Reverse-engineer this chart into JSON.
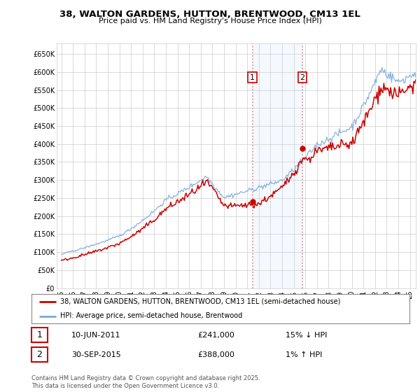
{
  "title": "38, WALTON GARDENS, HUTTON, BRENTWOOD, CM13 1EL",
  "subtitle": "Price paid vs. HM Land Registry's House Price Index (HPI)",
  "ylabel_ticks": [
    "£0",
    "£50K",
    "£100K",
    "£150K",
    "£200K",
    "£250K",
    "£300K",
    "£350K",
    "£400K",
    "£450K",
    "£500K",
    "£550K",
    "£600K",
    "£650K"
  ],
  "ytick_values": [
    0,
    50000,
    100000,
    150000,
    200000,
    250000,
    300000,
    350000,
    400000,
    450000,
    500000,
    550000,
    600000,
    650000
  ],
  "ylim": [
    0,
    680000
  ],
  "xlim_start": 1994.6,
  "xlim_end": 2025.5,
  "sale1_x": 2011.44,
  "sale1_y": 241000,
  "sale2_x": 2015.75,
  "sale2_y": 388000,
  "legend_line1": "38, WALTON GARDENS, HUTTON, BRENTWOOD, CM13 1EL (semi-detached house)",
  "legend_line2": "HPI: Average price, semi-detached house, Brentwood",
  "note1_date": "10-JUN-2011",
  "note1_price": "£241,000",
  "note1_hpi": "15% ↓ HPI",
  "note2_date": "30-SEP-2015",
  "note2_price": "£388,000",
  "note2_hpi": "1% ↑ HPI",
  "footer": "Contains HM Land Registry data © Crown copyright and database right 2025.\nThis data is licensed under the Open Government Licence v3.0.",
  "line_color_red": "#cc0000",
  "line_color_blue": "#7aaadd",
  "grid_color": "#cccccc",
  "vline_color": "#dd8888",
  "highlight_color": "#ddeeff",
  "background_color": "#ffffff"
}
